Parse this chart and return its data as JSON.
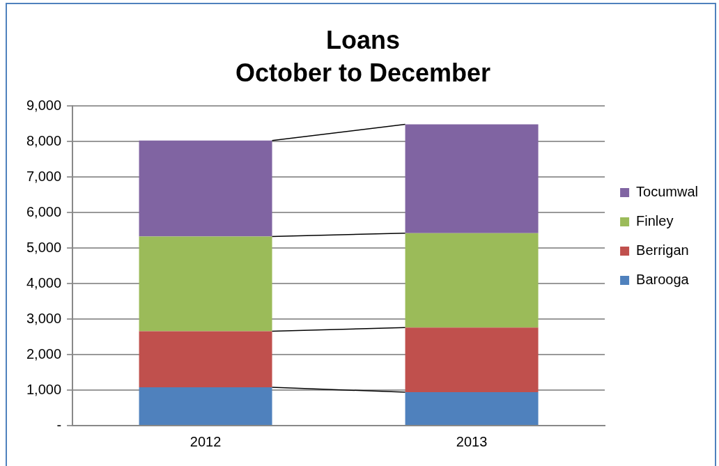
{
  "chart_data": {
    "type": "bar",
    "title": "Loans",
    "subtitle": "October to December",
    "categories": [
      "2012",
      "2013"
    ],
    "stacked": true,
    "series": [
      {
        "name": "Barooga",
        "color": "#4f81bd",
        "values": [
          1080,
          940
        ]
      },
      {
        "name": "Berrigan",
        "color": "#c0504d",
        "values": [
          1580,
          1820
        ]
      },
      {
        "name": "Finley",
        "color": "#9bbb59",
        "values": [
          2670,
          2660
        ]
      },
      {
        "name": "Tocumwal",
        "color": "#8064a2",
        "values": [
          2700,
          3070
        ]
      }
    ],
    "ylim": [
      0,
      9000
    ],
    "yticks": [
      {
        "value": 0,
        "label": "-"
      },
      {
        "value": 1000,
        "label": "1,000"
      },
      {
        "value": 2000,
        "label": "2,000"
      },
      {
        "value": 3000,
        "label": "3,000"
      },
      {
        "value": 4000,
        "label": "4,000"
      },
      {
        "value": 5000,
        "label": "5,000"
      },
      {
        "value": 6000,
        "label": "6,000"
      },
      {
        "value": 7000,
        "label": "7,000"
      },
      {
        "value": 8000,
        "label": "8,000"
      },
      {
        "value": 9000,
        "label": "9,000"
      }
    ],
    "grid": "y",
    "legend": "right"
  }
}
